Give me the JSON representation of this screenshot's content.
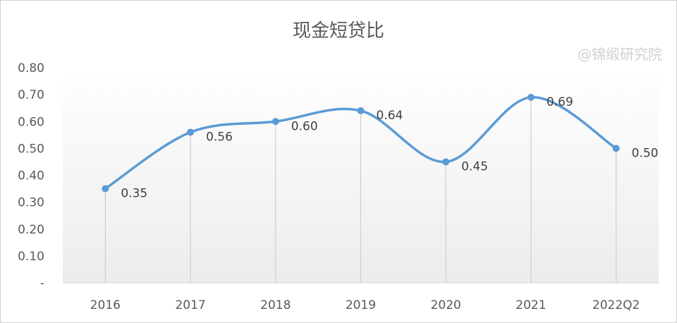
{
  "chart_data": {
    "type": "line",
    "title": "现金短贷比",
    "categories": [
      "2016",
      "2017",
      "2018",
      "2019",
      "2020",
      "2021",
      "2022Q2"
    ],
    "values": [
      0.35,
      0.56,
      0.6,
      0.64,
      0.45,
      0.69,
      0.5
    ],
    "data_labels": [
      "0.35",
      "0.56",
      "0.60",
      "0.64",
      "0.45",
      "0.69",
      "0.50"
    ],
    "ylim": [
      0,
      0.8
    ],
    "yticks": [
      "-",
      "0.10",
      "0.20",
      "0.30",
      "0.40",
      "0.50",
      "0.60",
      "0.70",
      "0.80"
    ],
    "smooth": true,
    "drop_lines": true,
    "grid": false,
    "legend": "none",
    "line_color": "#5B9BD5"
  },
  "watermark": "@锦缎研究院"
}
